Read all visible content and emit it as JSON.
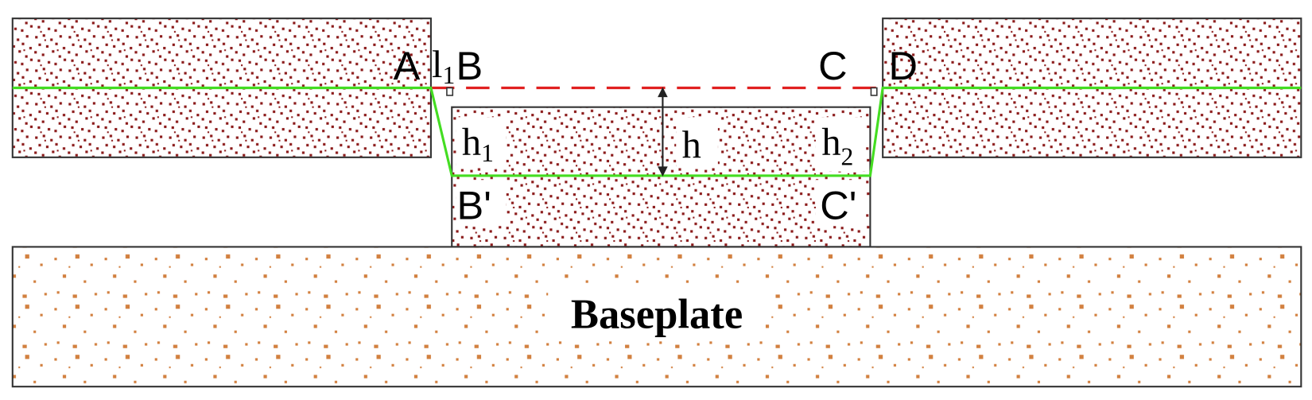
{
  "labels": {
    "A": "A",
    "l1": {
      "base": "l",
      "sub": "1"
    },
    "B": "B",
    "C": "C",
    "D": "D",
    "h1": {
      "base": "h",
      "sub": "1"
    },
    "h": "h",
    "h2": {
      "base": "h",
      "sub": "2"
    },
    "B_prime": "B'",
    "C_prime": "C'"
  },
  "baseplate": "Baseplate"
}
